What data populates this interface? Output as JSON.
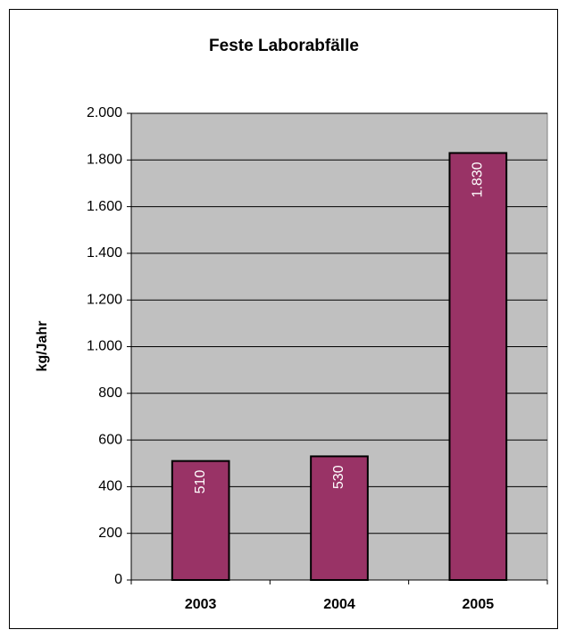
{
  "chart_data": {
    "type": "bar",
    "title": "Feste Laborabfälle",
    "y_label": "kg/Jahr",
    "categories": [
      "2003",
      "2004",
      "2005"
    ],
    "values": [
      510,
      530,
      1830
    ],
    "value_labels": [
      "510",
      "530",
      "1.830"
    ],
    "color": "#993366",
    "ylim": [
      0,
      2000
    ],
    "yticks": [
      0,
      200,
      400,
      600,
      800,
      {
        "value": 1000,
        "label": "1.000"
      },
      {
        "value": 1200,
        "label": "1.200"
      },
      {
        "value": 1400,
        "label": "1.400"
      },
      {
        "value": 1600,
        "label": "1.600"
      },
      {
        "value": 1800,
        "label": "1.800"
      },
      {
        "value": 2000,
        "label": "2.000"
      }
    ],
    "grid": true
  }
}
